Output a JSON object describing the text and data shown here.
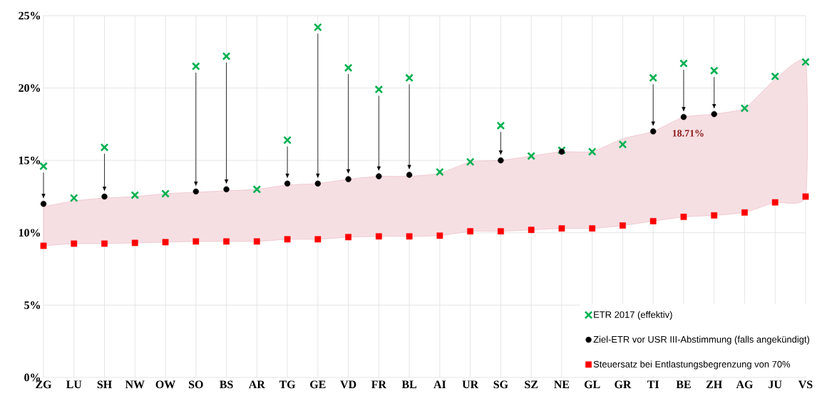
{
  "chart_data": {
    "type": "scatter",
    "categories": [
      "ZG",
      "LU",
      "SH",
      "NW",
      "OW",
      "SO",
      "BS",
      "AR",
      "TG",
      "GE",
      "VD",
      "FR",
      "BL",
      "AI",
      "UR",
      "SG",
      "SZ",
      "NE",
      "GL",
      "GR",
      "TI",
      "BE",
      "ZH",
      "AG",
      "JU",
      "VS"
    ],
    "series": [
      {
        "name": "ETR 2017 (effektiv)",
        "color": "#00b050",
        "marker": "cross",
        "values": [
          14.6,
          12.4,
          15.9,
          12.6,
          12.7,
          21.5,
          22.2,
          13.0,
          16.4,
          24.2,
          21.4,
          19.9,
          20.7,
          14.2,
          14.9,
          17.4,
          15.3,
          15.7,
          15.6,
          16.1,
          20.7,
          21.7,
          21.2,
          18.6,
          20.8,
          21.8
        ]
      },
      {
        "name": "Ziel-ETR vor USR III-Abstimmung (falls angekündigt)",
        "color": "#000000",
        "marker": "circle",
        "values": [
          12.0,
          null,
          12.5,
          null,
          null,
          12.85,
          13.0,
          null,
          13.4,
          13.4,
          13.7,
          13.9,
          14.0,
          null,
          null,
          15.0,
          null,
          15.6,
          null,
          null,
          17.0,
          18.0,
          18.2,
          null,
          null,
          null
        ]
      },
      {
        "name": "Steuersatz bei Entlastungsbegrenzung von 70%",
        "color": "#ff0000",
        "marker": "square",
        "values": [
          9.1,
          9.25,
          9.25,
          9.3,
          9.35,
          9.4,
          9.4,
          9.4,
          9.55,
          9.55,
          9.7,
          9.75,
          9.75,
          9.8,
          10.1,
          10.1,
          10.2,
          10.3,
          10.3,
          10.5,
          10.8,
          11.1,
          11.2,
          11.4,
          12.1,
          12.5
        ],
        "lower": [
          9.1,
          9.25,
          9.25,
          9.3,
          9.35,
          9.4,
          9.4,
          9.4,
          9.55,
          9.55,
          9.7,
          9.75,
          9.75,
          9.8,
          10.1,
          10.1,
          10.2,
          10.3,
          10.3,
          10.5,
          10.8,
          11.1,
          11.2,
          11.4,
          12.1,
          12.5
        ],
        "upper": [
          11.8,
          12.2,
          12.4,
          12.5,
          12.7,
          12.8,
          12.9,
          13.0,
          13.3,
          13.4,
          13.7,
          13.9,
          13.9,
          14.1,
          14.9,
          15.0,
          15.3,
          15.6,
          15.6,
          16.5,
          17.0,
          18.0,
          18.2,
          18.6,
          20.6,
          21.8
        ]
      }
    ],
    "ylim": [
      0,
      25
    ],
    "yticks": [
      {
        "value": 0,
        "label": "0%"
      },
      {
        "value": 5,
        "label": "5%"
      },
      {
        "value": 10,
        "label": "10%"
      },
      {
        "value": 15,
        "label": "15%"
      },
      {
        "value": 20,
        "label": "20%"
      },
      {
        "value": 25,
        "label": "25%"
      }
    ],
    "grid": true,
    "legend": "bottom right",
    "annotations": [
      "18.71%"
    ]
  }
}
